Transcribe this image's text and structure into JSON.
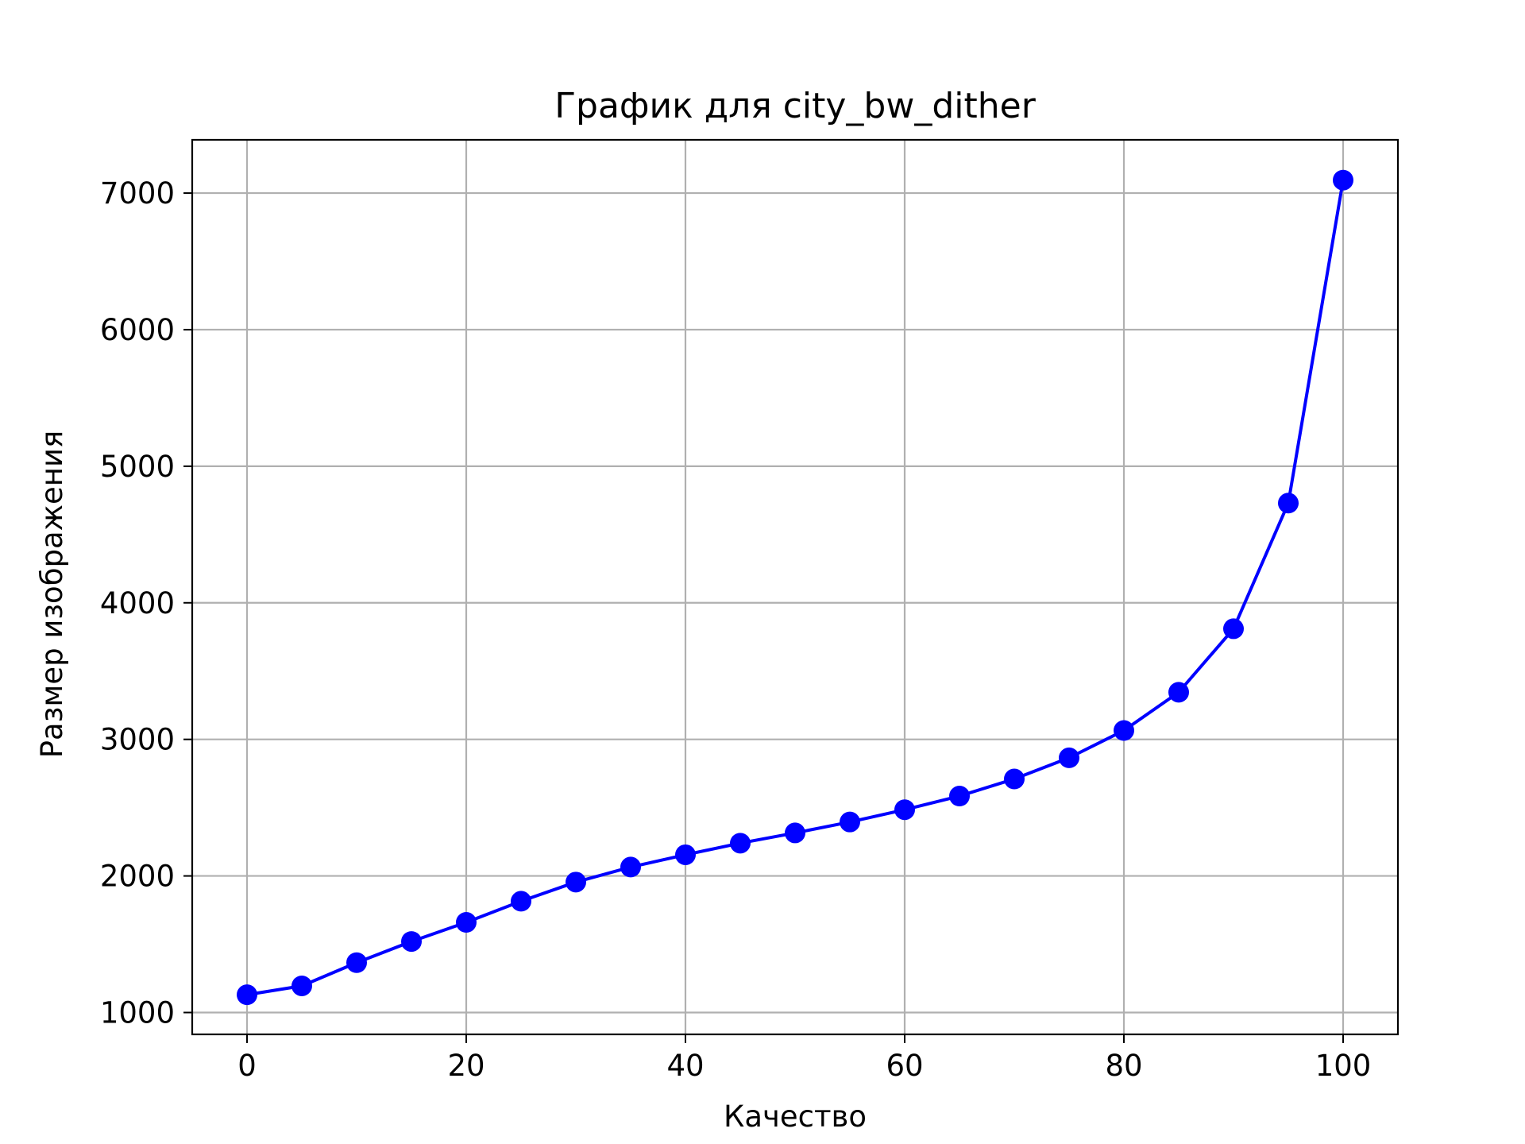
{
  "chart_data": {
    "type": "line",
    "title": "График для city_bw_dither",
    "xlabel": "Качество",
    "ylabel": "Размер изображения",
    "x": [
      0,
      5,
      10,
      15,
      20,
      25,
      30,
      35,
      40,
      45,
      50,
      55,
      60,
      65,
      70,
      75,
      80,
      85,
      90,
      95,
      100
    ],
    "series": [
      {
        "values": [
          1130,
          1195,
          1365,
          1520,
          1660,
          1815,
          1955,
          2065,
          2155,
          2240,
          2315,
          2395,
          2485,
          2585,
          2710,
          2865,
          3065,
          3345,
          3810,
          4730,
          7095
        ],
        "color": "#0000ff",
        "marker": "circle"
      }
    ],
    "xlim": [
      -5,
      105
    ],
    "ylim": [
      840,
      7390
    ],
    "xticks": [
      0,
      20,
      40,
      60,
      80,
      100
    ],
    "yticks": [
      1000,
      2000,
      3000,
      4000,
      5000,
      6000,
      7000
    ],
    "grid": true
  }
}
